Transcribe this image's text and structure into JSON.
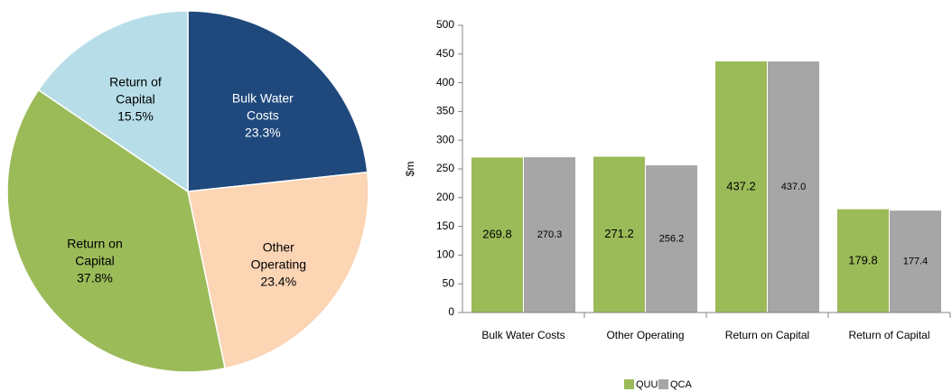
{
  "chart_data": [
    {
      "type": "pie",
      "categories": [
        "Bulk Water Costs",
        "Other Operating",
        "Return on Capital",
        "Return of Capital"
      ],
      "values": [
        23.3,
        23.4,
        37.8,
        15.5
      ],
      "value_labels": [
        "23.3%",
        "23.4%",
        "37.8%",
        "15.5%"
      ],
      "colors": [
        "#1f497d",
        "#fcd5b5",
        "#9bbb59",
        "#b7dee8"
      ]
    },
    {
      "type": "bar",
      "categories": [
        "Bulk Water Costs",
        "Other Operating",
        "Return on Capital",
        "Return of Capital"
      ],
      "series": [
        {
          "name": "QUU",
          "color": "#9bbb59",
          "values": [
            269.8,
            271.2,
            437.2,
            179.8
          ],
          "value_labels": [
            "269.8",
            "271.2",
            "437.2",
            "179.8"
          ]
        },
        {
          "name": "QCA",
          "color": "#a6a6a6",
          "values": [
            270.3,
            256.2,
            437.0,
            177.4
          ],
          "value_labels": [
            "270.3",
            "256.2",
            "437.0",
            "177.4"
          ]
        }
      ],
      "ylabel": "$m",
      "ylim": [
        0,
        500
      ],
      "yticks": [
        0,
        50,
        100,
        150,
        200,
        250,
        300,
        350,
        400,
        450,
        500
      ]
    }
  ]
}
